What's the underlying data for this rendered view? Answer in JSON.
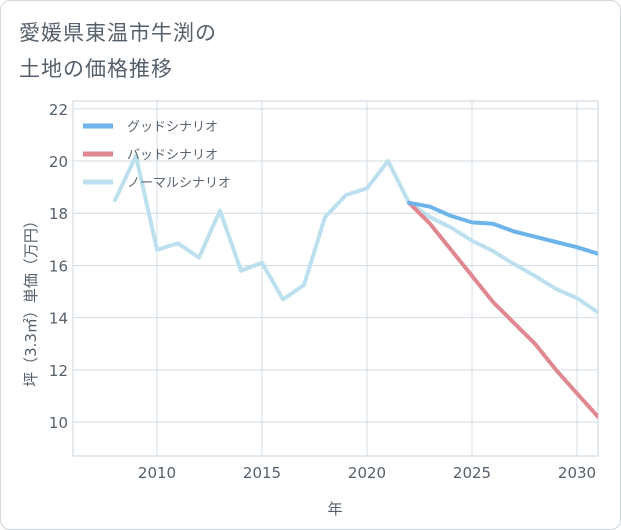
{
  "title_line1": "愛媛県東温市牛渕の",
  "title_line2": "土地の価格推移",
  "chart_data": {
    "type": "line",
    "title": "愛媛県東温市牛渕の土地の価格推移",
    "xlabel": "年",
    "ylabel": "坪（3.3㎡）単価（万円）",
    "xlim": [
      2006,
      2031
    ],
    "ylim": [
      8.7,
      22.3
    ],
    "grid": true,
    "legend_position": "top-left",
    "xticks": [
      2010,
      2015,
      2020,
      2025,
      2030
    ],
    "yticks": [
      10,
      12,
      14,
      16,
      18,
      20,
      22
    ],
    "series": [
      {
        "name": "グッドシナリオ",
        "color": "#6cb4ea",
        "x": [
          2022,
          2023,
          2024,
          2025,
          2026,
          2027,
          2028,
          2029,
          2030,
          2031
        ],
        "y": [
          18.4,
          18.25,
          17.9,
          17.65,
          17.6,
          17.3,
          17.1,
          16.9,
          16.7,
          16.45
        ]
      },
      {
        "name": "バッドシナリオ",
        "color": "#e08890",
        "x": [
          2022,
          2023,
          2024,
          2025,
          2026,
          2027,
          2028,
          2029,
          2030,
          2031
        ],
        "y": [
          18.4,
          17.6,
          16.6,
          15.6,
          14.6,
          13.8,
          13.0,
          12.0,
          11.1,
          10.2
        ]
      },
      {
        "name": "ノーマルシナリオ",
        "color": "#bde0ef",
        "x": [
          2008,
          2009,
          2010,
          2011,
          2012,
          2013,
          2014,
          2015,
          2016,
          2017,
          2018,
          2019,
          2020,
          2021,
          2022,
          2023,
          2024,
          2025,
          2026,
          2027,
          2028,
          2029,
          2030,
          2031
        ],
        "y": [
          18.5,
          20.2,
          16.6,
          16.85,
          16.3,
          18.1,
          15.8,
          16.1,
          14.7,
          15.25,
          17.85,
          18.7,
          18.95,
          20.0,
          18.4,
          17.85,
          17.45,
          16.95,
          16.55,
          16.05,
          15.6,
          15.1,
          14.75,
          14.2
        ]
      }
    ]
  }
}
